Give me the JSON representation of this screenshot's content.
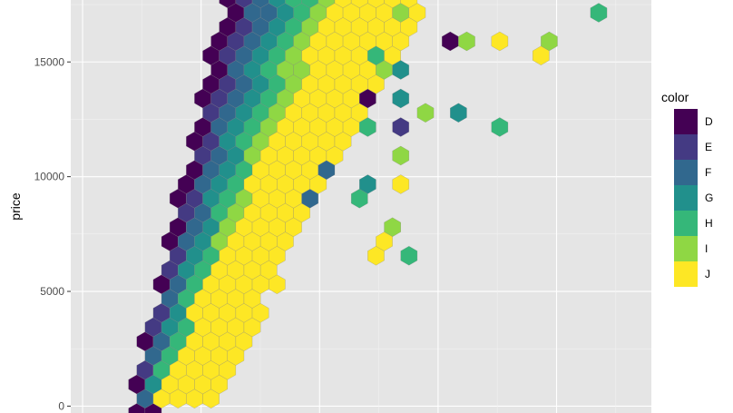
{
  "chart_data": {
    "type": "hexbin",
    "title": "",
    "xlabel": "",
    "ylabel": "price",
    "y_ticks": [
      0,
      5000,
      10000,
      15000
    ],
    "ylim": [
      -300,
      17700
    ],
    "x_domain": [
      0.15,
      2.6
    ],
    "grid": true,
    "panel_background": "#e5e5e5",
    "legend": {
      "title": "color",
      "placement": "right",
      "entries": [
        {
          "label": "D",
          "color": "#440154"
        },
        {
          "label": "E",
          "color": "#443a83"
        },
        {
          "label": "F",
          "color": "#31688e"
        },
        {
          "label": "G",
          "color": "#21908c"
        },
        {
          "label": "H",
          "color": "#35b779"
        },
        {
          "label": "I",
          "color": "#8fd744"
        },
        {
          "label": "J",
          "color": "#fde725"
        }
      ]
    },
    "bands": [
      {
        "color": "D",
        "y0": 0,
        "y1": 17500,
        "x_at_y0": 0.45,
        "x_at_y1": 0.85,
        "width": 0.05
      },
      {
        "color": "E",
        "y0": 500,
        "y1": 17500,
        "x_at_y0": 0.48,
        "x_at_y1": 0.93,
        "width": 0.06
      },
      {
        "color": "F",
        "y0": 500,
        "y1": 17500,
        "x_at_y0": 0.5,
        "x_at_y1": 1.0,
        "width": 0.07
      },
      {
        "color": "G",
        "y0": 500,
        "y1": 17500,
        "x_at_y0": 0.53,
        "x_at_y1": 1.08,
        "width": 0.08
      },
      {
        "color": "H",
        "y0": 500,
        "y1": 17500,
        "x_at_y0": 0.56,
        "x_at_y1": 1.17,
        "width": 0.1
      },
      {
        "color": "I",
        "y0": 300,
        "y1": 17500,
        "x_at_y0": 0.6,
        "x_at_y1": 1.26,
        "width": 0.12
      },
      {
        "color": "J",
        "y0": 300,
        "y1": 17500,
        "x_at_y0": 0.63,
        "x_at_y1": 1.45,
        "width": 0.3
      }
    ],
    "outliers": [
      {
        "color": "D",
        "x": 1.72,
        "y": 16100
      },
      {
        "color": "D",
        "x": 1.4,
        "y": 13500
      },
      {
        "color": "E",
        "x": 1.53,
        "y": 11900
      },
      {
        "color": "F",
        "x": 1.16,
        "y": 9200
      },
      {
        "color": "F",
        "x": 1.25,
        "y": 10100
      },
      {
        "color": "G",
        "x": 1.57,
        "y": 13500
      },
      {
        "color": "G",
        "x": 1.5,
        "y": 14600
      },
      {
        "color": "G",
        "x": 1.52,
        "y": 14900
      },
      {
        "color": "G",
        "x": 1.81,
        "y": 13000
      },
      {
        "color": "G",
        "x": 1.42,
        "y": 9500
      },
      {
        "color": "H",
        "x": 2.35,
        "y": 17200
      },
      {
        "color": "H",
        "x": 1.45,
        "y": 15500
      },
      {
        "color": "H",
        "x": 1.66,
        "y": 12500
      },
      {
        "color": "H",
        "x": 1.4,
        "y": 11900
      },
      {
        "color": "H",
        "x": 1.93,
        "y": 11900
      },
      {
        "color": "H",
        "x": 1.55,
        "y": 6500
      },
      {
        "color": "H",
        "x": 1.38,
        "y": 9000
      },
      {
        "color": "I",
        "x": 1.55,
        "y": 17200
      },
      {
        "color": "I",
        "x": 1.84,
        "y": 16100
      },
      {
        "color": "I",
        "x": 2.16,
        "y": 16100
      },
      {
        "color": "I",
        "x": 1.63,
        "y": 12900
      },
      {
        "color": "I",
        "x": 1.55,
        "y": 10800
      },
      {
        "color": "I",
        "x": 1.53,
        "y": 8000
      },
      {
        "color": "I",
        "x": 1.5,
        "y": 14600
      },
      {
        "color": "J",
        "x": 1.95,
        "y": 16100
      },
      {
        "color": "J",
        "x": 2.16,
        "y": 15100
      },
      {
        "color": "J",
        "x": 1.55,
        "y": 16100
      },
      {
        "color": "J",
        "x": 1.55,
        "y": 9700
      },
      {
        "color": "J",
        "x": 1.43,
        "y": 6500
      },
      {
        "color": "J",
        "x": 1.46,
        "y": 7000
      }
    ]
  }
}
